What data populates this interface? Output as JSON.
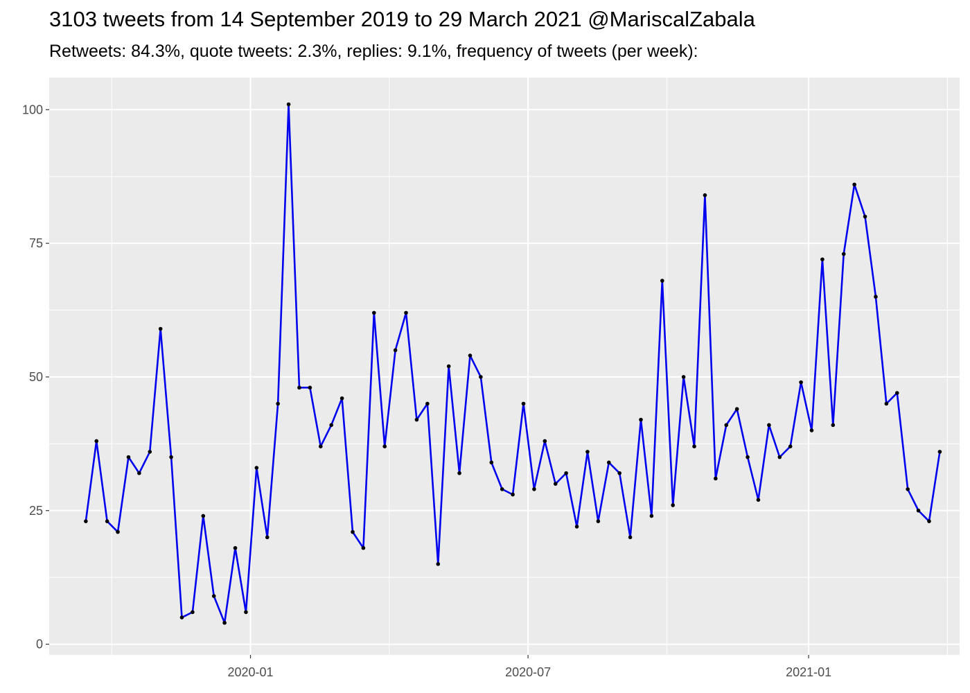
{
  "chart_data": {
    "type": "line",
    "title": "3103 tweets from 14 September 2019 to 29 March 2021 @MariscalZabala",
    "subtitle": "Retweets: 84.3%, quote tweets: 2.3%, replies: 9.1%, frequency of tweets (per week):",
    "xlabel": "",
    "ylabel": "",
    "ylim": [
      -2,
      106
    ],
    "yticks": [
      0,
      25,
      50,
      75,
      100
    ],
    "xticks": [
      {
        "date": "2020-01-01",
        "label": "2020-01"
      },
      {
        "date": "2020-07-01",
        "label": "2020-07"
      },
      {
        "date": "2021-01-01",
        "label": "2021-01"
      }
    ],
    "xrange": [
      "2019-08-22",
      "2021-04-10"
    ],
    "grid": true,
    "background": "#ebebeb",
    "line_color": "#0000ee",
    "point_color": "#000000",
    "series": [
      {
        "x": [
          "2019-09-15",
          "2019-09-22",
          "2019-09-29",
          "2019-10-06",
          "2019-10-13",
          "2019-10-20",
          "2019-10-27",
          "2019-11-03",
          "2019-11-10",
          "2019-11-17",
          "2019-11-24",
          "2019-12-01",
          "2019-12-08",
          "2019-12-15",
          "2019-12-22",
          "2019-12-29",
          "2020-01-05",
          "2020-01-12",
          "2020-01-19",
          "2020-01-26",
          "2020-02-02",
          "2020-02-09",
          "2020-02-16",
          "2020-02-23",
          "2020-03-01",
          "2020-03-08",
          "2020-03-15",
          "2020-03-22",
          "2020-03-29",
          "2020-04-05",
          "2020-04-12",
          "2020-04-19",
          "2020-04-26",
          "2020-05-03",
          "2020-05-10",
          "2020-05-17",
          "2020-05-24",
          "2020-05-31",
          "2020-06-07",
          "2020-06-14",
          "2020-06-21",
          "2020-06-28",
          "2020-07-05",
          "2020-07-12",
          "2020-07-19",
          "2020-07-26",
          "2020-08-02",
          "2020-08-09",
          "2020-08-16",
          "2020-08-23",
          "2020-08-30",
          "2020-09-06",
          "2020-09-13",
          "2020-09-20",
          "2020-09-27",
          "2020-10-04",
          "2020-10-11",
          "2020-10-18",
          "2020-10-25",
          "2020-11-01",
          "2020-11-08",
          "2020-11-15",
          "2020-11-22",
          "2020-11-29",
          "2020-12-06",
          "2020-12-13",
          "2020-12-20",
          "2020-12-27",
          "2021-01-03",
          "2021-01-10",
          "2021-01-17",
          "2021-01-24",
          "2021-01-31",
          "2021-02-07",
          "2021-02-14",
          "2021-02-21",
          "2021-02-28",
          "2021-03-07",
          "2021-03-14",
          "2021-03-21",
          "2021-03-28"
        ],
        "values": [
          23,
          38,
          23,
          21,
          35,
          32,
          36,
          59,
          35,
          5,
          6,
          24,
          9,
          4,
          18,
          6,
          33,
          20,
          45,
          101,
          48,
          48,
          37,
          41,
          46,
          21,
          18,
          62,
          37,
          55,
          62,
          42,
          45,
          15,
          52,
          32,
          54,
          50,
          34,
          29,
          28,
          45,
          29,
          38,
          30,
          32,
          22,
          36,
          23,
          34,
          32,
          20,
          42,
          24,
          68,
          26,
          50,
          37,
          84,
          31,
          41,
          44,
          35,
          27,
          41,
          35,
          37,
          49,
          40,
          72,
          41,
          73,
          86,
          80,
          65,
          45,
          47,
          29,
          25,
          23,
          36
        ]
      }
    ]
  }
}
